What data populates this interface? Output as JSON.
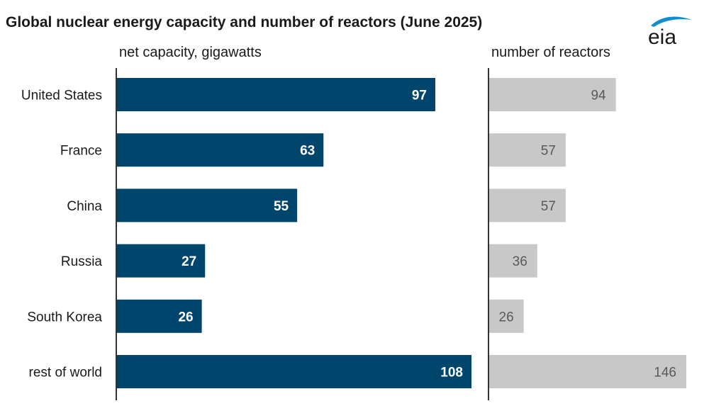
{
  "title": "Global nuclear energy capacity and number of reactors (June 2025)",
  "logo_text": "eia",
  "colors": {
    "capacity": "#00456b",
    "reactors": "#c8c8c8",
    "axis": "#333333",
    "logo": "#0f8ecf"
  },
  "chart_data": [
    {
      "type": "bar",
      "orientation": "horizontal",
      "title": "net capacity, gigawatts",
      "categories": [
        "United States",
        "France",
        "China",
        "Russia",
        "South Korea",
        "rest of world"
      ],
      "values": [
        97,
        63,
        55,
        27,
        26,
        108
      ],
      "xlim": [
        0,
        108
      ]
    },
    {
      "type": "bar",
      "orientation": "horizontal",
      "title": "number of reactors",
      "categories": [
        "United States",
        "France",
        "China",
        "Russia",
        "South Korea",
        "rest of world"
      ],
      "values": [
        94,
        57,
        57,
        36,
        26,
        146
      ],
      "xlim": [
        0,
        146
      ]
    }
  ]
}
